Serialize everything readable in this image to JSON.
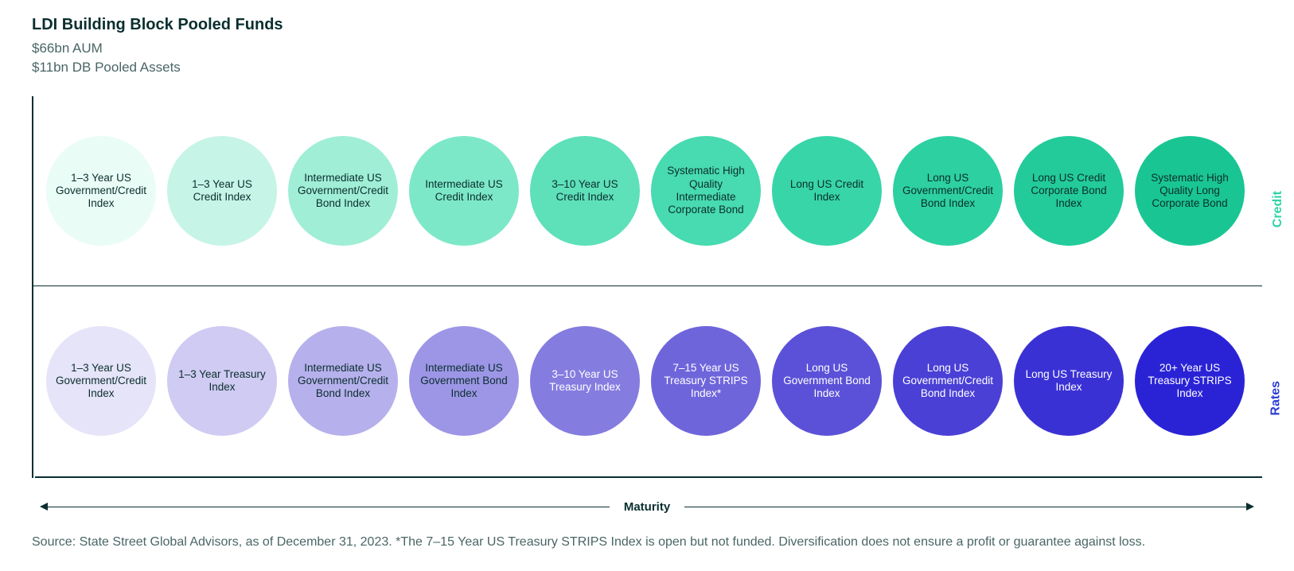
{
  "title": "LDI Building Block Pooled Funds",
  "subtitle_line1": "$66bn AUM",
  "subtitle_line2": "$11bn DB Pooled Assets",
  "colors": {
    "text_dark": "#0a2e2e",
    "text_muted": "#4a6565",
    "credit_label": "#2dd4a8",
    "rates_label": "#2a3bd6"
  },
  "rows": {
    "credit": {
      "label": "Credit",
      "bubbles": [
        {
          "label": "1–3 Year US Government/Credit Index",
          "bg": "#eafcf6",
          "text": "#0a2e2e"
        },
        {
          "label": "1–3 Year US Credit Index",
          "bg": "#c6f4e6",
          "text": "#0a2e2e"
        },
        {
          "label": "Intermediate US Government/Credit Bond Index",
          "bg": "#a0eed6",
          "text": "#0a2e2e"
        },
        {
          "label": "Intermediate US Credit Index",
          "bg": "#7de8c7",
          "text": "#0a2e2e"
        },
        {
          "label": "3–10 Year US Credit Index",
          "bg": "#5ee0b9",
          "text": "#0a2e2e"
        },
        {
          "label": "Systematic High Quality Intermediate Corporate Bond",
          "bg": "#48dab0",
          "text": "#0a2e2e"
        },
        {
          "label": "Long US Credit Index",
          "bg": "#38d5a8",
          "text": "#0a2e2e"
        },
        {
          "label": "Long US Government/Credit Bond Index",
          "bg": "#2dd0a1",
          "text": "#0a2e2e"
        },
        {
          "label": "Long US Credit Corporate Bond Index",
          "bg": "#23cb9a",
          "text": "#0a2e2e"
        },
        {
          "label": "Systematic High Quality Long Corporate Bond",
          "bg": "#19c693",
          "text": "#0a2e2e"
        }
      ]
    },
    "rates": {
      "label": "Rates",
      "bubbles": [
        {
          "label": "1–3 Year US Government/Credit Index",
          "bg": "#e6e4f8",
          "text": "#0a2e2e"
        },
        {
          "label": "1–3 Year Treasury Index",
          "bg": "#cfcbf2",
          "text": "#0a2e2e"
        },
        {
          "label": "Intermediate US Government/Credit Bond Index",
          "bg": "#b6b0ec",
          "text": "#0a2e2e"
        },
        {
          "label": "Intermediate US Government Bond Index",
          "bg": "#9d96e6",
          "text": "#0a2e2e"
        },
        {
          "label": "3–10 Year US Treasury Index",
          "bg": "#857ce0",
          "text": "#ffffff"
        },
        {
          "label": "7–15 Year US Treasury STRIPS Index*",
          "bg": "#6f65db",
          "text": "#ffffff"
        },
        {
          "label": "Long US Government Bond Index",
          "bg": "#5b51d8",
          "text": "#ffffff"
        },
        {
          "label": "Long US Government/Credit Bond Index",
          "bg": "#4a40d6",
          "text": "#ffffff"
        },
        {
          "label": "Long US Treasury Index",
          "bg": "#3a31d5",
          "text": "#ffffff"
        },
        {
          "label": "20+ Year US Treasury STRIPS Index",
          "bg": "#2a23d6",
          "text": "#ffffff"
        }
      ]
    }
  },
  "x_axis_label": "Maturity",
  "footnote": "Source: State Street Global Advisors, as of December 31, 2023. *The 7–15 Year US Treasury STRIPS Index is open but not funded. Diversification does not ensure a profit or guarantee against loss."
}
